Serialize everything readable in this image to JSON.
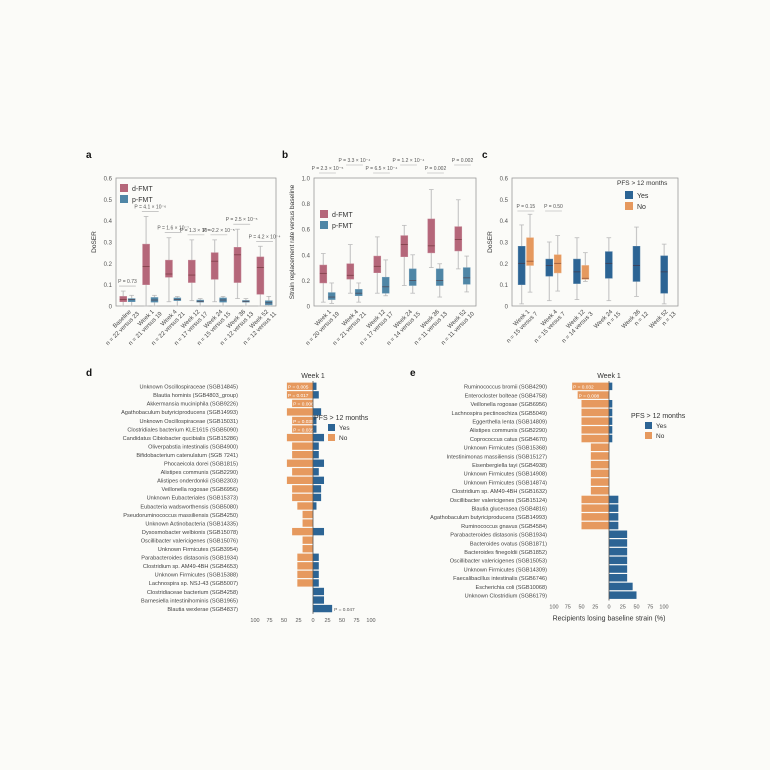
{
  "colors": {
    "dfmt": "#b5677a",
    "pfmt": "#4f86a6",
    "yes": "#2c6494",
    "no": "#e6995e",
    "axis": "#888888",
    "text": "#444444"
  },
  "chart_data": [
    {
      "panel": "a",
      "type": "box",
      "ylabel": "DoSER",
      "ylim": [
        0,
        0.6
      ],
      "yticks": [
        "0",
        "0.1",
        "0.2",
        "0.3",
        "0.4",
        "0.5",
        "0.6"
      ],
      "legend": [
        "d-FMT",
        "p-FMT"
      ],
      "categories": [
        {
          "label": "Baseline",
          "n": "n = 22 versus 23",
          "p": "P = 0.73",
          "d": {
            "min": 0.0,
            "q1": 0.02,
            "med": 0.03,
            "q3": 0.045,
            "max": 0.07
          },
          "p_": {
            "min": 0.0,
            "q1": 0.02,
            "med": 0.03,
            "q3": 0.035,
            "max": 0.05
          }
        },
        {
          "label": "Week 1",
          "n": "n = 21 versus 19",
          "p": "P = 4.1 × 10⁻⁶",
          "d": {
            "min": 0.0,
            "q1": 0.1,
            "med": 0.185,
            "q3": 0.29,
            "max": 0.42
          },
          "p_": {
            "min": 0.0,
            "q1": 0.018,
            "med": 0.028,
            "q3": 0.04,
            "max": 0.05
          }
        },
        {
          "label": "Week 4",
          "n": "n = 22 versus 21",
          "p": "P = 1.6 × 10⁻⁷",
          "d": {
            "min": 0.02,
            "q1": 0.135,
            "med": 0.15,
            "q3": 0.215,
            "max": 0.32
          },
          "p_": {
            "min": 0.0,
            "q1": 0.025,
            "med": 0.03,
            "q3": 0.038,
            "max": 0.045
          }
        },
        {
          "label": "Week 12",
          "n": "n = 17 versus 17",
          "p": "P = 1.3 × 10⁻⁴",
          "d": {
            "min": 0.025,
            "q1": 0.11,
            "med": 0.145,
            "q3": 0.215,
            "max": 0.31
          },
          "p_": {
            "min": 0.0,
            "q1": 0.018,
            "med": 0.022,
            "q3": 0.028,
            "max": 0.035
          }
        },
        {
          "label": "Week 24",
          "n": "n = 15 versus 15",
          "p": "P = 2.2 × 10⁻⁵",
          "d": {
            "min": 0.02,
            "q1": 0.125,
            "med": 0.21,
            "q3": 0.25,
            "max": 0.31
          },
          "p_": {
            "min": 0.0,
            "q1": 0.018,
            "med": 0.028,
            "q3": 0.038,
            "max": 0.045
          }
        },
        {
          "label": "Week 36",
          "n": "n = 12 versus 13",
          "p": "P = 2.5 × 10⁻⁵",
          "d": {
            "min": 0.035,
            "q1": 0.11,
            "med": 0.24,
            "q3": 0.275,
            "max": 0.36
          },
          "p_": {
            "min": 0.0,
            "q1": 0.018,
            "med": 0.022,
            "q3": 0.026,
            "max": 0.035
          }
        },
        {
          "label": "Week 52",
          "n": "n = 12 versus 11",
          "p": "P = 4.2 × 10⁻⁴",
          "d": {
            "min": 0.0,
            "q1": 0.055,
            "med": 0.18,
            "q3": 0.23,
            "max": 0.28
          },
          "p_": {
            "min": 0.0,
            "q1": 0.005,
            "med": 0.015,
            "q3": 0.025,
            "max": 0.045
          }
        }
      ]
    },
    {
      "panel": "b",
      "type": "box",
      "ylabel": "Strain replacement rate versus baseline",
      "ylim": [
        0,
        1.0
      ],
      "yticks": [
        "0",
        "0.2",
        "0.4",
        "0.6",
        "0.8",
        "1.0"
      ],
      "legend": [
        "d-FMT",
        "p-FMT"
      ],
      "categories": [
        {
          "label": "Week 1",
          "n": "n = 20 versus 19",
          "p": "P = 2.3 × 10⁻⁵",
          "d": {
            "min": 0.03,
            "q1": 0.18,
            "med": 0.255,
            "q3": 0.32,
            "max": 0.41
          },
          "p_": {
            "min": 0.02,
            "q1": 0.05,
            "med": 0.07,
            "q3": 0.105,
            "max": 0.18
          }
        },
        {
          "label": "Week 4",
          "n": "n = 21 versus 21",
          "p": "P = 3.3 × 10⁻⁴",
          "d": {
            "min": 0.1,
            "q1": 0.21,
            "med": 0.24,
            "q3": 0.33,
            "max": 0.48
          },
          "p_": {
            "min": 0.03,
            "q1": 0.08,
            "med": 0.1,
            "q3": 0.13,
            "max": 0.18
          }
        },
        {
          "label": "Week 12",
          "n": "n = 17 versus 17",
          "p": "P = 6.5 × 10⁻⁴",
          "d": {
            "min": 0.1,
            "q1": 0.26,
            "med": 0.31,
            "q3": 0.39,
            "max": 0.54
          },
          "p_": {
            "min": 0.08,
            "q1": 0.1,
            "med": 0.15,
            "q3": 0.225,
            "max": 0.36
          }
        },
        {
          "label": "Week 24",
          "n": "n = 14 versus 15",
          "p": "P = 1.2 × 10⁻⁴",
          "d": {
            "min": 0.16,
            "q1": 0.385,
            "med": 0.48,
            "q3": 0.55,
            "max": 0.63
          },
          "p_": {
            "min": 0.1,
            "q1": 0.16,
            "med": 0.2,
            "q3": 0.29,
            "max": 0.4
          }
        },
        {
          "label": "Week 36",
          "n": "n = 11 versus 13",
          "p": "P = 0.002",
          "d": {
            "min": 0.3,
            "q1": 0.415,
            "med": 0.47,
            "q3": 0.68,
            "max": 0.91
          },
          "p_": {
            "min": 0.07,
            "q1": 0.16,
            "med": 0.2,
            "q3": 0.29,
            "max": 0.33
          }
        },
        {
          "label": "Week 52",
          "n": "n = 11 versus 10",
          "p": "P = 0.002",
          "d": {
            "min": 0.29,
            "q1": 0.43,
            "med": 0.52,
            "q3": 0.62,
            "max": 0.83
          },
          "p_": {
            "min": 0.11,
            "q1": 0.17,
            "med": 0.22,
            "q3": 0.3,
            "max": 0.39
          }
        }
      ]
    },
    {
      "panel": "c",
      "type": "box",
      "ylabel": "DoSER",
      "ylim": [
        0,
        0.6
      ],
      "yticks": [
        "0",
        "0.1",
        "0.2",
        "0.3",
        "0.4",
        "0.5",
        "0.6"
      ],
      "legend_title": "PFS > 12 months",
      "legend": [
        "Yes",
        "No"
      ],
      "categories": [
        {
          "label": "Week 1",
          "n": "n = 15 versus 7",
          "p": "P = 0.15",
          "y": {
            "min": 0.01,
            "q1": 0.1,
            "med": 0.2,
            "q3": 0.28,
            "max": 0.38
          },
          "n_": {
            "min": 0.065,
            "q1": 0.19,
            "med": 0.21,
            "q3": 0.32,
            "max": 0.43
          }
        },
        {
          "label": "Week 4",
          "n": "n = 15 versus 7",
          "p": "P = 0.50",
          "y": {
            "min": 0.025,
            "q1": 0.14,
            "med": 0.19,
            "q3": 0.22,
            "max": 0.3
          },
          "n_": {
            "min": 0.07,
            "q1": 0.155,
            "med": 0.2,
            "q3": 0.24,
            "max": 0.33
          }
        },
        {
          "label": "Week 12",
          "n": "n = 14 versus 3",
          "p": "",
          "y": {
            "min": 0.03,
            "q1": 0.105,
            "med": 0.16,
            "q3": 0.22,
            "max": 0.32
          },
          "n_": {
            "min": 0.115,
            "q1": 0.125,
            "med": 0.13,
            "q3": 0.19,
            "max": 0.25
          }
        },
        {
          "label": "Week 24",
          "n": "n = 15",
          "p": "",
          "y": {
            "min": 0.025,
            "q1": 0.13,
            "med": 0.2,
            "q3": 0.255,
            "max": 0.32
          }
        },
        {
          "label": "Week 36",
          "n": "n = 12",
          "p": "",
          "y": {
            "min": 0.045,
            "q1": 0.115,
            "med": 0.19,
            "q3": 0.28,
            "max": 0.37
          }
        },
        {
          "label": "Week 52",
          "n": "n = 13",
          "p": "",
          "y": {
            "min": 0.01,
            "q1": 0.06,
            "med": 0.16,
            "q3": 0.235,
            "max": 0.29
          }
        }
      ]
    },
    {
      "panel": "d",
      "type": "bar",
      "title": "Week 1",
      "xlabel": "Recipients acquiring donor strain (%)",
      "xticks": [
        "100",
        "75",
        "50",
        "25",
        "0",
        "25",
        "50",
        "75",
        "100"
      ],
      "legend_title": "PFS > 12 months",
      "legend": [
        "Yes",
        "No"
      ],
      "rows": [
        {
          "name": "Unknown Oscillospiraceae (SGB14845)",
          "no": 45,
          "yes": 6,
          "p": "P = 0.005"
        },
        {
          "name": "Blautia hominis (SGB4803_group)",
          "no": 45,
          "yes": 10,
          "p": "P = 0.017"
        },
        {
          "name": "Akkermansia muciniphila (SGB9226)",
          "no": 36,
          "yes": 0,
          "p": "P = 0.006"
        },
        {
          "name": "Agathobaculum butyriciproducens (SGB14993)",
          "no": 45,
          "yes": 14,
          "p": ""
        },
        {
          "name": "Unknown Oscillospiraceae (SGB15031)",
          "no": 36,
          "yes": 6,
          "p": "P = 0.035"
        },
        {
          "name": "Clostridiales bacterium KLE1615 (SGB5090)",
          "no": 36,
          "yes": 6,
          "p": "P = 0.035"
        },
        {
          "name": "Candidatus Cibiobacter qucibialis (SGB15286)",
          "no": 45,
          "yes": 19,
          "p": ""
        },
        {
          "name": "Oliverpabstia intestinalis (SGB4900)",
          "no": 36,
          "yes": 10,
          "p": ""
        },
        {
          "name": "Bifidobacterium catenulatum (SGB 7241)",
          "no": 36,
          "yes": 10,
          "p": ""
        },
        {
          "name": "Phocaeicola dorei (SGB1815)",
          "no": 45,
          "yes": 19,
          "p": ""
        },
        {
          "name": "Alistipes communis (SGB2290)",
          "no": 36,
          "yes": 10,
          "p": ""
        },
        {
          "name": "Alistipes onderdonkii (SGB2303)",
          "no": 45,
          "yes": 19,
          "p": ""
        },
        {
          "name": "Veillonella rogosae (SGB6956)",
          "no": 36,
          "yes": 14,
          "p": ""
        },
        {
          "name": "Unknown Eubacteriales (SGB15373)",
          "no": 36,
          "yes": 14,
          "p": ""
        },
        {
          "name": "Eubacteria wadsworthensis (SGB5080)",
          "no": 27,
          "yes": 6,
          "p": ""
        },
        {
          "name": "Pseudoruminococcus massiliensis (SGB4250)",
          "no": 18,
          "yes": 0,
          "p": ""
        },
        {
          "name": "Unknown Actinobacteria (SGB14335)",
          "no": 18,
          "yes": 0,
          "p": ""
        },
        {
          "name": "Dysosmobacter welbionis (SGB15078)",
          "no": 36,
          "yes": 19,
          "p": ""
        },
        {
          "name": "Oscillibacter valericigenes (SGB15076)",
          "no": 18,
          "yes": 0,
          "p": ""
        },
        {
          "name": "Unknown Firmicutes (SGB3954)",
          "no": 18,
          "yes": 0,
          "p": ""
        },
        {
          "name": "Parabacteroides distasonis (SGB1934)",
          "no": 27,
          "yes": 10,
          "p": ""
        },
        {
          "name": "Clostridium sp. AM49-4BH (SGB4653)",
          "no": 27,
          "yes": 10,
          "p": ""
        },
        {
          "name": "Unknown Firmicutes (SGB15388)",
          "no": 27,
          "yes": 10,
          "p": ""
        },
        {
          "name": "Lachnospira sp. NSJ-43 (SGB5007)",
          "no": 27,
          "yes": 10,
          "p": ""
        },
        {
          "name": "Clostridiaceae bacterium (SGB4258)",
          "no": 0,
          "yes": 19,
          "p": ""
        },
        {
          "name": "Barnesiella intestinihominis (SGB1965)",
          "no": 0,
          "yes": 19,
          "p": ""
        },
        {
          "name": "Blautia wexlerae (SGB4837)",
          "no": 0,
          "yes": 33,
          "p": "P = 0.047"
        }
      ]
    },
    {
      "panel": "e",
      "type": "bar",
      "title": "Week 1",
      "xlabel": "Recipients losing baseline strain (%)",
      "xticks": [
        "100",
        "75",
        "50",
        "25",
        "0",
        "25",
        "50",
        "75",
        "100"
      ],
      "legend_title": "PFS > 12 months",
      "legend": [
        "Yes",
        "No"
      ],
      "rows": [
        {
          "name": "Ruminococcus bromii (SGB4290)",
          "no": 67,
          "yes": 6,
          "p": "P = 0.032"
        },
        {
          "name": "Enterocloster bolteae (SGB4758)",
          "no": 57,
          "yes": 0,
          "p": "P = 0.008"
        },
        {
          "name": "Veillonella rogosae (SGB6956)",
          "no": 50,
          "yes": 6,
          "p": ""
        },
        {
          "name": "Lachnospira pectinoschiza (SGB5049)",
          "no": 50,
          "yes": 6,
          "p": ""
        },
        {
          "name": "Eggerthella lenta (SGB14809)",
          "no": 50,
          "yes": 6,
          "p": ""
        },
        {
          "name": "Alistipes communis (SGB2290)",
          "no": 50,
          "yes": 6,
          "p": ""
        },
        {
          "name": "Coprococcus catus (SGB4670)",
          "no": 50,
          "yes": 6,
          "p": ""
        },
        {
          "name": "Unknown Firmicutes (SGB15368)",
          "no": 33,
          "yes": 0,
          "p": ""
        },
        {
          "name": "Intestinimonas massiliensis (SGB15127)",
          "no": 33,
          "yes": 0,
          "p": ""
        },
        {
          "name": "Eisenbergiella tayi (SGB4938)",
          "no": 33,
          "yes": 0,
          "p": ""
        },
        {
          "name": "Unknown Firmicutes (SGB14908)",
          "no": 33,
          "yes": 0,
          "p": ""
        },
        {
          "name": "Unknown Firmicutes (SGB14874)",
          "no": 33,
          "yes": 0,
          "p": ""
        },
        {
          "name": "Clostridium sp. AM49-4BH (SGB1632)",
          "no": 33,
          "yes": 0,
          "p": ""
        },
        {
          "name": "Oscillibacter valericigenes (SGB15124)",
          "no": 50,
          "yes": 17,
          "p": ""
        },
        {
          "name": "Blautia glucerasea (SGB4816)",
          "no": 50,
          "yes": 17,
          "p": ""
        },
        {
          "name": "Agathobaculum butyriciproducens (SGB14993)",
          "no": 50,
          "yes": 17,
          "p": ""
        },
        {
          "name": "Ruminococcus gnavus (SGB4584)",
          "no": 50,
          "yes": 17,
          "p": ""
        },
        {
          "name": "Parabacteroides distasonis (SGB1934)",
          "no": 0,
          "yes": 33,
          "p": ""
        },
        {
          "name": "Bacteroides ovatus (SGB1871)",
          "no": 0,
          "yes": 33,
          "p": ""
        },
        {
          "name": "Bacteroides finegoldii (SGB1852)",
          "no": 0,
          "yes": 33,
          "p": ""
        },
        {
          "name": "Oscillibacter valericigenes (SGB15053)",
          "no": 0,
          "yes": 33,
          "p": ""
        },
        {
          "name": "Unknown Firmicutes (SGB14309)",
          "no": 0,
          "yes": 33,
          "p": ""
        },
        {
          "name": "Faecalibacillus intestinalis (SGB6746)",
          "no": 0,
          "yes": 33,
          "p": ""
        },
        {
          "name": "Escherichia coli (SGB10068)",
          "no": 0,
          "yes": 43,
          "p": ""
        },
        {
          "name": "Unknown Clostridium (SGB6179)",
          "no": 0,
          "yes": 50,
          "p": ""
        }
      ]
    }
  ],
  "panels": {
    "a": {
      "label": "a"
    },
    "b": {
      "label": "b"
    },
    "c": {
      "label": "c"
    },
    "d": {
      "label": "d"
    },
    "e": {
      "label": "e"
    }
  }
}
